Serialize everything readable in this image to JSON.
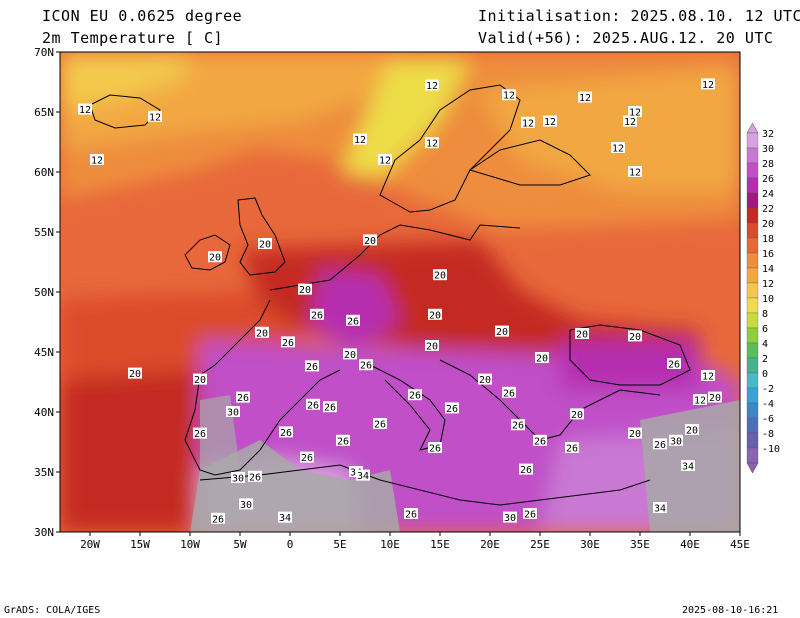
{
  "header": {
    "model": "ICON EU 0.0625 degree",
    "variable": "2m Temperature [ C]",
    "init": "Initialisation: 2025.08.10. 12 UTC",
    "valid": "Valid(+56): 2025.AUG.12. 20 UTC"
  },
  "footer": {
    "credit": "GrADS: COLA/IGES",
    "timestamp": "2025-08-10-16:21"
  },
  "axes": {
    "lon_labels": [
      "20W",
      "15W",
      "10W",
      "5W",
      "0",
      "5E",
      "10E",
      "15E",
      "20E",
      "25E",
      "30E",
      "35E",
      "40E",
      "45E"
    ],
    "lat_labels": [
      "70N",
      "65N",
      "60N",
      "55N",
      "50N",
      "45N",
      "40N",
      "35N",
      "30N"
    ]
  },
  "colorbar": {
    "labels": [
      "32",
      "30",
      "28",
      "26",
      "24",
      "22",
      "20",
      "18",
      "16",
      "14",
      "12",
      "10",
      "8",
      "6",
      "4",
      "2",
      "0",
      "-2",
      "-4",
      "-6",
      "-8",
      "-10"
    ],
    "colors": [
      "#d7a2dd",
      "#c978d4",
      "#c04fc8",
      "#b52db0",
      "#9e1a80",
      "#c42a23",
      "#db4b2b",
      "#e8683b",
      "#ee8d3e",
      "#f2a842",
      "#f3c94b",
      "#eddd47",
      "#c8dc3c",
      "#8fcf3f",
      "#5bbd58",
      "#46b38f",
      "#4bb8c7",
      "#3aa2d4",
      "#3d86c8",
      "#4d6fb9",
      "#6a5eae",
      "#8a63b2"
    ]
  },
  "contour_labels": [
    {
      "t": "12",
      "lon": -20.5,
      "lat": 65.2
    },
    {
      "t": "12",
      "lon": -13.5,
      "lat": 64.6
    },
    {
      "t": "12",
      "lon": -19.3,
      "lat": 61.0
    },
    {
      "t": "12",
      "lon": 7.0,
      "lat": 62.7
    },
    {
      "t": "12",
      "lon": 9.5,
      "lat": 61.0
    },
    {
      "t": "12",
      "lon": 14.2,
      "lat": 67.2
    },
    {
      "t": "12",
      "lon": 14.2,
      "lat": 62.4
    },
    {
      "t": "12",
      "lon": 21.9,
      "lat": 66.4
    },
    {
      "t": "12",
      "lon": 29.5,
      "lat": 66.2
    },
    {
      "t": "12",
      "lon": 41.8,
      "lat": 67.3
    },
    {
      "t": "12",
      "lon": 23.8,
      "lat": 64.1
    },
    {
      "t": "12",
      "lon": 26.0,
      "lat": 64.2
    },
    {
      "t": "12",
      "lon": 34.5,
      "lat": 65.0
    },
    {
      "t": "12",
      "lon": 34.0,
      "lat": 64.2
    },
    {
      "t": "12",
      "lon": 32.8,
      "lat": 62.0
    },
    {
      "t": "12",
      "lon": 34.5,
      "lat": 60.0
    },
    {
      "t": "20",
      "lon": -2.5,
      "lat": 54.0
    },
    {
      "t": "20",
      "lon": -7.5,
      "lat": 52.9
    },
    {
      "t": "20",
      "lon": 8.0,
      "lat": 54.3
    },
    {
      "t": "20",
      "lon": 15.0,
      "lat": 51.4
    },
    {
      "t": "20",
      "lon": 1.5,
      "lat": 50.2
    },
    {
      "t": "20",
      "lon": 14.5,
      "lat": 48.1
    },
    {
      "t": "20",
      "lon": -2.8,
      "lat": 46.6
    },
    {
      "t": "20",
      "lon": -15.5,
      "lat": 43.2
    },
    {
      "t": "20",
      "lon": -9.0,
      "lat": 42.7
    },
    {
      "t": "20",
      "lon": 6.0,
      "lat": 44.8
    },
    {
      "t": "20",
      "lon": 14.2,
      "lat": 45.5
    },
    {
      "t": "20",
      "lon": 21.2,
      "lat": 46.7
    },
    {
      "t": "20",
      "lon": 25.2,
      "lat": 44.5
    },
    {
      "t": "20",
      "lon": 29.2,
      "lat": 46.5
    },
    {
      "t": "20",
      "lon": 34.5,
      "lat": 46.3
    },
    {
      "t": "20",
      "lon": 19.5,
      "lat": 42.7
    },
    {
      "t": "20",
      "lon": 28.7,
      "lat": 39.8
    },
    {
      "t": "20",
      "lon": 34.5,
      "lat": 38.2
    },
    {
      "t": "20",
      "lon": 40.2,
      "lat": 38.5
    },
    {
      "t": "20",
      "lon": 42.5,
      "lat": 41.2
    },
    {
      "t": "12",
      "lon": 41.8,
      "lat": 43.0
    },
    {
      "t": "12",
      "lon": 41.0,
      "lat": 41.0
    },
    {
      "t": "26",
      "lon": 2.7,
      "lat": 48.1
    },
    {
      "t": "26",
      "lon": 6.3,
      "lat": 47.6
    },
    {
      "t": "26",
      "lon": -0.2,
      "lat": 45.8
    },
    {
      "t": "26",
      "lon": 2.2,
      "lat": 43.8
    },
    {
      "t": "26",
      "lon": 7.6,
      "lat": 43.9
    },
    {
      "t": "26",
      "lon": -4.7,
      "lat": 41.2
    },
    {
      "t": "26",
      "lon": 2.3,
      "lat": 40.6
    },
    {
      "t": "26",
      "lon": 4.0,
      "lat": 40.4
    },
    {
      "t": "26",
      "lon": 12.5,
      "lat": 41.4
    },
    {
      "t": "26",
      "lon": 16.2,
      "lat": 40.3
    },
    {
      "t": "26",
      "lon": 9.0,
      "lat": 39.0
    },
    {
      "t": "26",
      "lon": -9.0,
      "lat": 38.2
    },
    {
      "t": "26",
      "lon": -0.4,
      "lat": 38.3
    },
    {
      "t": "26",
      "lon": 5.3,
      "lat": 37.6
    },
    {
      "t": "26",
      "lon": 14.5,
      "lat": 37.0
    },
    {
      "t": "26",
      "lon": 21.9,
      "lat": 41.6
    },
    {
      "t": "26",
      "lon": 22.8,
      "lat": 38.9
    },
    {
      "t": "26",
      "lon": 25.0,
      "lat": 37.6
    },
    {
      "t": "26",
      "lon": 28.2,
      "lat": 37.0
    },
    {
      "t": "26",
      "lon": 1.7,
      "lat": 36.2
    },
    {
      "t": "26",
      "lon": 23.6,
      "lat": 35.2
    },
    {
      "t": "26",
      "lon": 37.0,
      "lat": 37.3
    },
    {
      "t": "26",
      "lon": 38.4,
      "lat": 44.0
    },
    {
      "t": "26",
      "lon": -3.5,
      "lat": 34.6
    },
    {
      "t": "26",
      "lon": -9.6,
      "lat": 30.3
    },
    {
      "t": "26",
      "lon": -7.2,
      "lat": 31.1
    },
    {
      "t": "26",
      "lon": 12.1,
      "lat": 31.5
    },
    {
      "t": "26",
      "lon": 24.0,
      "lat": 31.5
    },
    {
      "t": "30",
      "lon": -5.7,
      "lat": 40.0
    },
    {
      "t": "30",
      "lon": -5.2,
      "lat": 34.5
    },
    {
      "t": "30",
      "lon": -4.4,
      "lat": 32.3
    },
    {
      "t": "30",
      "lon": 22.0,
      "lat": 31.2
    },
    {
      "t": "30",
      "lon": 38.6,
      "lat": 37.6
    },
    {
      "t": "34",
      "lon": 6.6,
      "lat": 35.0
    },
    {
      "t": "34",
      "lon": 7.3,
      "lat": 34.7
    },
    {
      "t": "34",
      "lon": -0.5,
      "lat": 31.2
    },
    {
      "t": "34",
      "lon": 39.8,
      "lat": 35.5
    },
    {
      "t": "34",
      "lon": 37.0,
      "lat": 32.0
    }
  ]
}
